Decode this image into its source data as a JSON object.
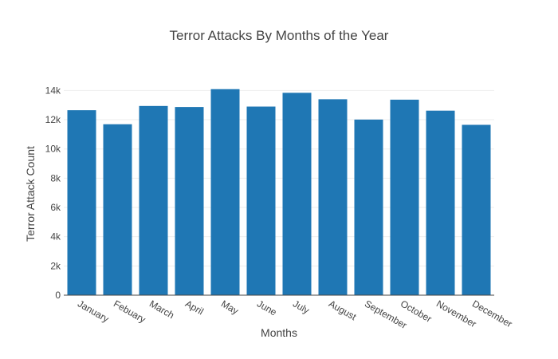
{
  "chart_data": {
    "type": "bar",
    "title": "Terror Attacks By Months of the Year",
    "xlabel": "Months",
    "ylabel": "Terror Attack Count",
    "categories": [
      "January",
      "Febuary",
      "March",
      "April",
      "May",
      "June",
      "July",
      "August",
      "September",
      "October",
      "November",
      "December"
    ],
    "values": [
      12650,
      11690,
      12940,
      12870,
      14090,
      12900,
      13840,
      13400,
      12010,
      13370,
      12620,
      11650
    ],
    "ylim": [
      0,
      14840
    ],
    "y_ticks": [
      0,
      2000,
      4000,
      6000,
      8000,
      10000,
      12000,
      14000
    ],
    "y_tick_labels": [
      "0",
      "2k",
      "4k",
      "6k",
      "8k",
      "10k",
      "12k",
      "14k"
    ],
    "bar_color": "#1f77b4",
    "grid": true,
    "legend": "none"
  }
}
